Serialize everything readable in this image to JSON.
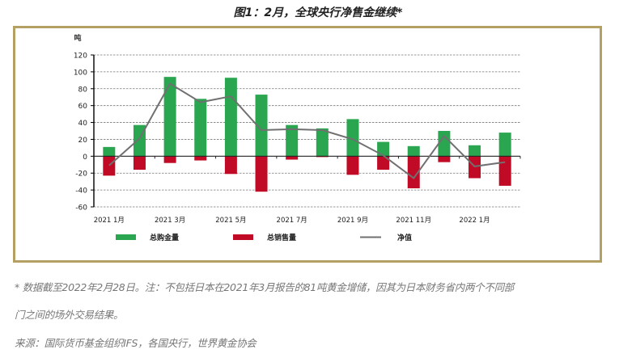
{
  "title": "图1：2月，全球央行净售金继续*",
  "chart_data": {
    "type": "bar",
    "title": "图1：2月，全球央行净售金继续*",
    "ylabel": "吨",
    "xlabel": "",
    "ylim": [
      -60,
      120
    ],
    "yticks": [
      120,
      100,
      80,
      60,
      40,
      20,
      0,
      -20,
      -40,
      -60
    ],
    "ytick_labels": [
      "120",
      "100",
      "80",
      "60",
      "40",
      "20",
      "0",
      "-20",
      "-40",
      "-60"
    ],
    "grid": true,
    "categories": [
      "2021 1月",
      "2021 2月",
      "2021 3月",
      "2021 4月",
      "2021 5月",
      "2021 6月",
      "2021 7月",
      "2021 8月",
      "2021 9月",
      "2021 10月",
      "2021 11月",
      "2021 12月",
      "2022 1月",
      "2022 2月"
    ],
    "xtick_labels": [
      "2021  1月",
      "2021 3月",
      "2021 5月",
      "2021 7月",
      "2021 9月",
      "2021 11月",
      "2022  1月"
    ],
    "series": [
      {
        "name": "总购金量",
        "type": "bar",
        "color": "#2aa650",
        "values": [
          11,
          37,
          94,
          68,
          93,
          73,
          37,
          33,
          44,
          17,
          12,
          30,
          13,
          28
        ]
      },
      {
        "name": "总销售量",
        "type": "bar",
        "color": "#c00a26",
        "values": [
          -23,
          -16,
          -8,
          -5,
          -21,
          -42,
          -4,
          -1,
          -22,
          -16,
          -38,
          -7,
          -26,
          -35
        ]
      },
      {
        "name": "净值",
        "type": "line",
        "color": "#707070",
        "values": [
          -11,
          21,
          86,
          64,
          71,
          31,
          32,
          31,
          20,
          1,
          -26,
          24,
          -12,
          -7
        ]
      }
    ],
    "legend": {
      "position": "bottom",
      "entries": [
        "总购金量",
        "总销售量",
        "净值"
      ]
    }
  },
  "notes": {
    "line1": "* 数据截至2022年2月28日。注：不包括日本在2021年3月报告的81吨黄金增储，因其为日本财务省内两个不同部",
    "line2": "门之间的场外交易结果。",
    "source": "来源：国际货币基金组织IFS，各国央行，世界黄金协会"
  }
}
